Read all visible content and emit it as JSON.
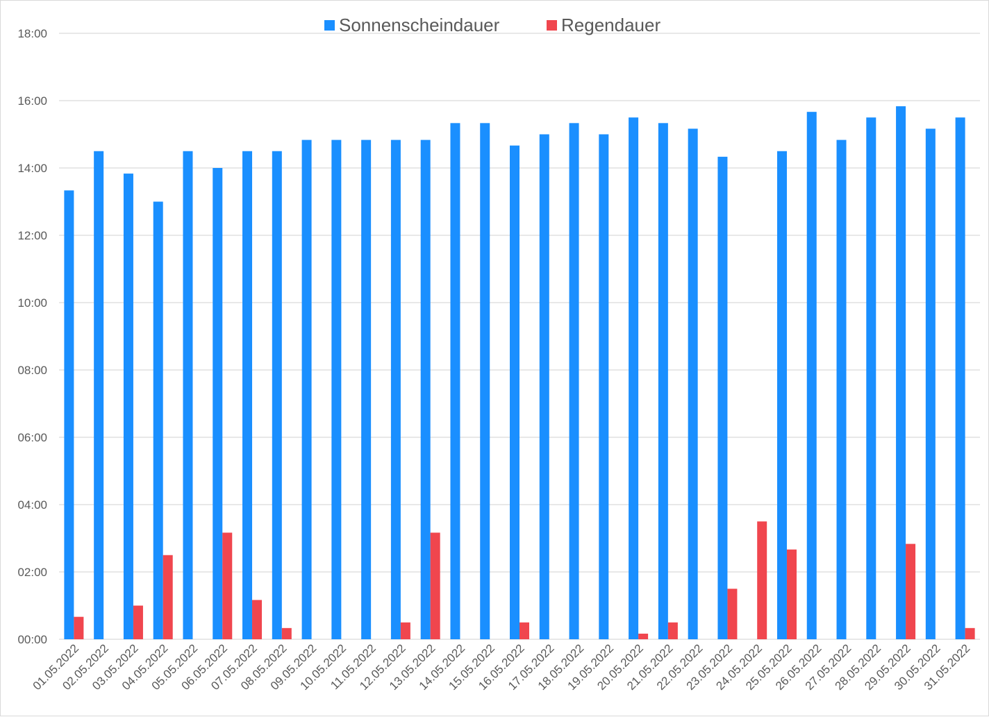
{
  "chart_data": {
    "type": "bar",
    "title": "",
    "xlabel": "",
    "ylabel": "",
    "ylim": [
      "00:00",
      "18:00"
    ],
    "y_ticks": [
      "00:00",
      "02:00",
      "04:00",
      "06:00",
      "08:00",
      "10:00",
      "12:00",
      "14:00",
      "16:00",
      "18:00"
    ],
    "grid": true,
    "legend_position": "top",
    "categories": [
      "01.05.2022",
      "02.05.2022",
      "03.05.2022",
      "04.05.2022",
      "05.05.2022",
      "06.05.2022",
      "07.05.2022",
      "08.05.2022",
      "09.05.2022",
      "10.05.2022",
      "11.05.2022",
      "12.05.2022",
      "13.05.2022",
      "14.05.2022",
      "15.05.2022",
      "16.05.2022",
      "17.05.2022",
      "18.05.2022",
      "19.05.2022",
      "20.05.2022",
      "21.05.2022",
      "22.05.2022",
      "23.05.2022",
      "24.05.2022",
      "25.05.2022",
      "26.05.2022",
      "27.05.2022",
      "28.05.2022",
      "29.05.2022",
      "30.05.2022",
      "31.05.2022"
    ],
    "series": [
      {
        "name": "Sonnenscheindauer",
        "color": "#1a8fff",
        "values": [
          "13:20",
          "14:30",
          "13:50",
          "13:00",
          "14:30",
          "14:00",
          "14:30",
          "14:30",
          "14:50",
          "14:50",
          "14:50",
          "14:50",
          "14:50",
          "15:20",
          "15:20",
          "14:40",
          "15:00",
          "15:20",
          "15:00",
          "15:30",
          "15:20",
          "15:10",
          "14:20",
          "00:00",
          "14:30",
          "15:40",
          "14:50",
          "15:30",
          "15:50",
          "15:10",
          "15:30"
        ]
      },
      {
        "name": "Regendauer",
        "color": "#f0464e",
        "values": [
          "00:40",
          "00:00",
          "01:00",
          "02:30",
          "00:00",
          "03:10",
          "01:10",
          "00:20",
          "00:00",
          "00:00",
          "00:00",
          "00:30",
          "03:10",
          "00:00",
          "00:00",
          "00:30",
          "00:00",
          "00:00",
          "00:00",
          "00:10",
          "00:30",
          "00:00",
          "01:30",
          "03:30",
          "02:40",
          "00:00",
          "00:00",
          "00:00",
          "02:50",
          "00:00",
          "00:20"
        ]
      }
    ]
  }
}
